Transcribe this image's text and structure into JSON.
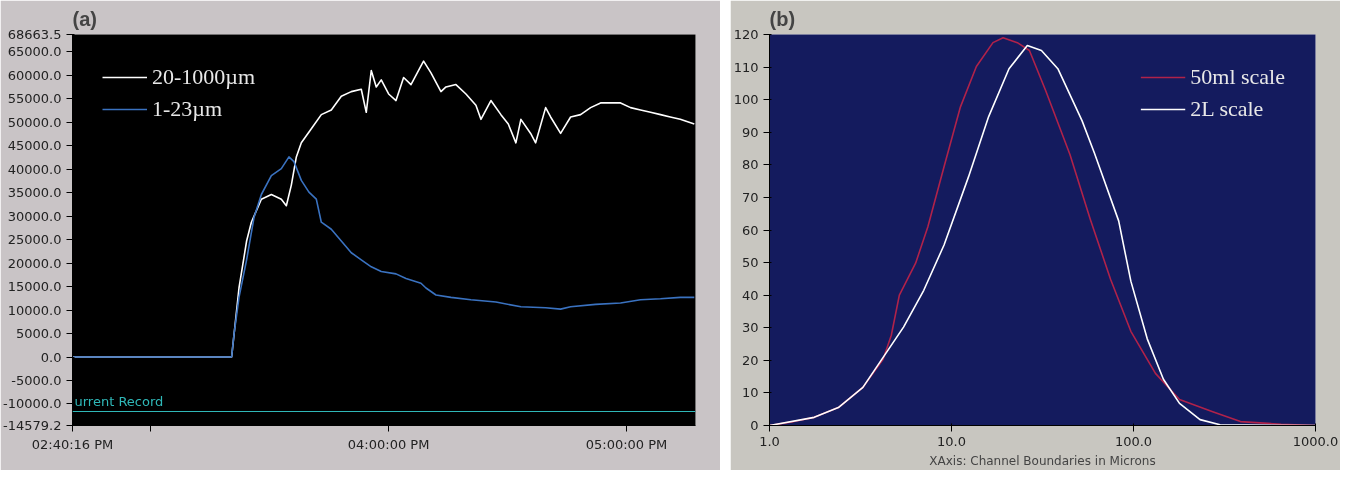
{
  "chart_data": [
    {
      "type": "line",
      "title": "(a)",
      "legend": "top left",
      "grid": false,
      "marker": "none",
      "line_style": "solid",
      "xlim": [
        14.6711,
        17.29
      ],
      "ylim": [
        -14579.2,
        68663.5
      ],
      "xticks": [
        {
          "value": 14.6711,
          "label": "02:40:16 PM"
        },
        {
          "value": 15,
          "label": null
        },
        {
          "value": 16,
          "label": "04:00:00 PM"
        },
        {
          "value": 17,
          "label": "05:00:00 PM"
        }
      ],
      "yticks": [
        {
          "value": -14579.2,
          "label": "-14579.2"
        },
        {
          "value": -10000,
          "label": "-10000.0"
        },
        {
          "value": -5000,
          "label": "-5000.0"
        },
        {
          "value": 0,
          "label": "0.0"
        },
        {
          "value": 5000,
          "label": "5000.0"
        },
        {
          "value": 10000,
          "label": "10000.0"
        },
        {
          "value": 15000,
          "label": "15000.0"
        },
        {
          "value": 20000,
          "label": "20000.0"
        },
        {
          "value": 25000,
          "label": "25000.0"
        },
        {
          "value": 30000,
          "label": "30000.0"
        },
        {
          "value": 35000,
          "label": "35000.0"
        },
        {
          "value": 40000,
          "label": "40000.0"
        },
        {
          "value": 45000,
          "label": "45000.0"
        },
        {
          "value": 50000,
          "label": "50000.0"
        },
        {
          "value": 55000,
          "label": "55000.0"
        },
        {
          "value": 60000,
          "label": "60000.0"
        },
        {
          "value": 65000,
          "label": "65000.0"
        },
        {
          "value": 68663.5,
          "label": "68663.5"
        }
      ],
      "ref_lines": [
        {
          "axis": "y",
          "value": -11600,
          "label": "urrent Record",
          "color": "#2fb8b8"
        }
      ],
      "series": [
        {
          "name": "20-1000µm",
          "color": "#ffffff",
          "x": [
            14.6711,
            15.34,
            15.371,
            15.403,
            15.423,
            15.465,
            15.507,
            15.549,
            15.57,
            15.591,
            15.612,
            15.633,
            15.675,
            15.717,
            15.759,
            15.801,
            15.843,
            15.885,
            15.906,
            15.927,
            15.948,
            15.969,
            16.0,
            16.031,
            16.063,
            16.094,
            16.136,
            16.147,
            16.178,
            16.22,
            16.241,
            16.283,
            16.325,
            16.367,
            16.388,
            16.43,
            16.472,
            16.503,
            16.535,
            16.556,
            16.597,
            16.618,
            16.66,
            16.681,
            16.723,
            16.765,
            16.807,
            16.849,
            16.891,
            16.933,
            16.975,
            17.017,
            17.059,
            17.101,
            17.143,
            17.184,
            17.226,
            17.285
          ],
          "values": [
            0,
            0,
            14700,
            24700,
            28700,
            33600,
            34600,
            33600,
            32200,
            36600,
            42600,
            45600,
            48600,
            51600,
            52600,
            55500,
            56500,
            57000,
            52100,
            61000,
            57500,
            59000,
            56000,
            54600,
            59500,
            58000,
            62000,
            63000,
            60500,
            56500,
            57500,
            58000,
            56000,
            53600,
            50600,
            54600,
            51600,
            49600,
            45600,
            50600,
            47600,
            45600,
            53100,
            51100,
            47600,
            51100,
            51600,
            53100,
            54100,
            54100,
            54100,
            53100,
            52600,
            52100,
            51600,
            51100,
            50600,
            49600
          ]
        },
        {
          "name": "1-23µm",
          "color": "#3a72c0",
          "x": [
            14.6711,
            15.34,
            15.35,
            15.371,
            15.403,
            15.434,
            15.465,
            15.507,
            15.549,
            15.581,
            15.602,
            15.633,
            15.665,
            15.696,
            15.717,
            15.759,
            15.801,
            15.843,
            15.885,
            15.927,
            15.969,
            16.031,
            16.073,
            16.136,
            16.157,
            16.199,
            16.262,
            16.346,
            16.451,
            16.556,
            16.66,
            16.723,
            16.765,
            16.87,
            16.975,
            17.059,
            17.143,
            17.226,
            17.285
          ],
          "values": [
            0,
            0,
            4800,
            12700,
            20700,
            29700,
            34600,
            38600,
            40100,
            42600,
            41600,
            37600,
            35100,
            33600,
            28700,
            27200,
            24700,
            22200,
            20700,
            19200,
            18200,
            17700,
            16700,
            15700,
            14700,
            13200,
            12700,
            12200,
            11700,
            10700,
            10500,
            10200,
            10700,
            11200,
            11500,
            12200,
            12400,
            12700,
            12700
          ]
        }
      ]
    },
    {
      "type": "line",
      "title": "(b)",
      "xlabel": "XAxis: Channel Boundaries in Microns",
      "legend": "top right",
      "grid": false,
      "log": "x",
      "marker": "none",
      "line_style": "solid",
      "xlim": [
        1,
        1000
      ],
      "ylim": [
        0,
        120
      ],
      "xticks": [
        {
          "value": 1,
          "label": "1.0"
        },
        {
          "value": 10,
          "label": "10.0"
        },
        {
          "value": 100,
          "label": "100.0"
        },
        {
          "value": 1000,
          "label": "1000.0"
        }
      ],
      "yticks": [
        0,
        10,
        20,
        30,
        40,
        50,
        60,
        70,
        80,
        90,
        100,
        110,
        120
      ],
      "series": [
        {
          "name": "50ml scale",
          "color": "#b0224a",
          "x": [
            1.0,
            1.36,
            1.76,
            2.39,
            3.26,
            4.21,
            4.67,
            5.17,
            6.35,
            7.41,
            9.1,
            11.2,
            13.7,
            16.9,
            19.2,
            23.0,
            26.8,
            32.9,
            44.8,
            57.8,
            74.8,
            96.7,
            132,
            179,
            270,
            387,
            647,
            1000
          ],
          "values": [
            0,
            1.2,
            2.5,
            5.5,
            11.7,
            20.3,
            27.7,
            40.0,
            49.8,
            60.9,
            79.4,
            97.8,
            110.2,
            117.5,
            119.0,
            117.5,
            115.1,
            102.8,
            83.1,
            63.4,
            44.9,
            28.9,
            16.0,
            8.0,
            4.3,
            1.2,
            0.4,
            0
          ]
        },
        {
          "name": "2L scale",
          "color": "#ffffff",
          "x": [
            1.0,
            1.76,
            2.39,
            3.26,
            4.21,
            5.45,
            7.04,
            9.1,
            12.4,
            16.0,
            20.7,
            26.1,
            31.2,
            38.4,
            52.2,
            60.9,
            82.9,
            96.7,
            119,
            146,
            179,
            232,
            299,
            1000
          ],
          "values": [
            0,
            2.5,
            5.5,
            11.7,
            20.9,
            30.2,
            41.5,
            55.4,
            76.3,
            94.8,
            109.5,
            116.6,
            115.1,
            109.5,
            93.5,
            83.7,
            62.8,
            44.3,
            26.6,
            14.2,
            6.8,
            1.8,
            0.2,
            0
          ]
        }
      ]
    }
  ]
}
